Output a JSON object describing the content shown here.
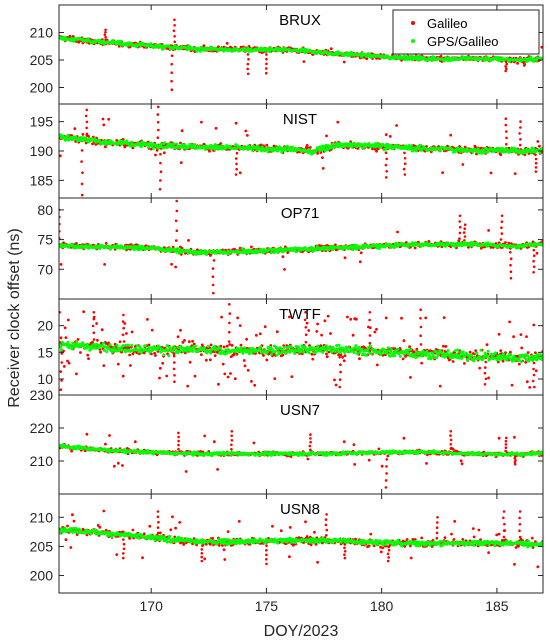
{
  "chart_data": {
    "type": "scatter",
    "xlabel": "DOY/2023",
    "ylabel": "Receiver clock offset (ns)",
    "xlim": [
      166,
      187
    ],
    "x_ticks": [
      "170",
      "175",
      "180",
      "185"
    ],
    "legend": {
      "placement": "top-right (first panel)",
      "entries": [
        {
          "name": "Galileo",
          "color": "#ff0000"
        },
        {
          "name": "GPS/Galileo",
          "color": "#00ff00"
        }
      ]
    },
    "panels": [
      {
        "title": "BRUX",
        "ylim": [
          197,
          215
        ],
        "y_ticks": [
          "200",
          "205",
          "210"
        ],
        "trend": [
          [
            166,
            209.0
          ],
          [
            168,
            208.2
          ],
          [
            170,
            207.6
          ],
          [
            172,
            207.0
          ],
          [
            174,
            206.9
          ],
          [
            176,
            206.8
          ],
          [
            178,
            206.2
          ],
          [
            180,
            205.6
          ],
          [
            182,
            205.2
          ],
          [
            184,
            205.3
          ],
          [
            186,
            205.0
          ],
          [
            187,
            205.2
          ]
        ],
        "spikes": [
          [
            170.9,
            199.6
          ],
          [
            171.0,
            212.3
          ],
          [
            174.2,
            202.5
          ],
          [
            175.0,
            202.6
          ],
          [
            185.4,
            203.0
          ],
          [
            186.2,
            204.0
          ],
          [
            168.0,
            210.5
          ]
        ]
      },
      {
        "title": "NIST",
        "ylim": [
          182,
          198
        ],
        "y_ticks": [
          "185",
          "190",
          "195"
        ],
        "trend": [
          [
            166,
            192.5
          ],
          [
            168,
            191.5
          ],
          [
            170,
            191.0
          ],
          [
            172,
            190.7
          ],
          [
            174,
            190.5
          ],
          [
            176,
            190.3
          ],
          [
            177,
            190.0
          ],
          [
            178,
            191.0
          ],
          [
            180,
            190.8
          ],
          [
            182,
            190.4
          ],
          [
            184,
            190.2
          ],
          [
            186,
            190.0
          ],
          [
            187,
            190.1
          ]
        ],
        "spikes": [
          [
            167.0,
            182.5
          ],
          [
            167.2,
            197.0
          ],
          [
            170.3,
            197.5
          ],
          [
            170.4,
            183.5
          ],
          [
            173.7,
            186.0
          ],
          [
            180.2,
            185.5
          ],
          [
            181.0,
            186.0
          ],
          [
            185.4,
            195.5
          ],
          [
            186.0,
            195.0
          ],
          [
            186.7,
            186.5
          ]
        ]
      },
      {
        "title": "OP71",
        "ylim": [
          65,
          82
        ],
        "y_ticks": [
          "70",
          "75",
          "80"
        ],
        "trend": [
          [
            166,
            74.0
          ],
          [
            168,
            73.8
          ],
          [
            170,
            73.6
          ],
          [
            172,
            72.8
          ],
          [
            174,
            73.0
          ],
          [
            176,
            73.3
          ],
          [
            178,
            73.6
          ],
          [
            180,
            74.0
          ],
          [
            182,
            74.2
          ],
          [
            184,
            74.2
          ],
          [
            186,
            73.9
          ],
          [
            187,
            74.3
          ]
        ],
        "spikes": [
          [
            166.0,
            80.0
          ],
          [
            171.1,
            81.5
          ],
          [
            172.7,
            66.0
          ],
          [
            183.4,
            79.0
          ],
          [
            183.6,
            77.5
          ],
          [
            185.2,
            79.0
          ],
          [
            185.6,
            68.5
          ],
          [
            186.6,
            69.5
          ]
        ]
      },
      {
        "title": "TWTF",
        "ylim": [
          7,
          25
        ],
        "y_ticks": [
          "10",
          "15",
          "20"
        ],
        "trend": [
          [
            166,
            16.5
          ],
          [
            168,
            16.0
          ],
          [
            170,
            15.5
          ],
          [
            172,
            15.5
          ],
          [
            174,
            15.2
          ],
          [
            176,
            15.5
          ],
          [
            178,
            15.5
          ],
          [
            180,
            15.2
          ],
          [
            182,
            14.8
          ],
          [
            184,
            14.3
          ],
          [
            186,
            14.0
          ],
          [
            187,
            14.2
          ]
        ],
        "spikes": [
          [
            166.1,
            8.0
          ],
          [
            167.5,
            22.5
          ],
          [
            168.8,
            22.0
          ],
          [
            171.0,
            9.5
          ],
          [
            173.4,
            24.0
          ],
          [
            176.7,
            22.5
          ],
          [
            178.2,
            8.5
          ],
          [
            179.5,
            22.5
          ],
          [
            181.7,
            23.0
          ],
          [
            184.5,
            9.0
          ],
          [
            186.6,
            8.5
          ]
        ]
      },
      {
        "title": "USN7",
        "ylim": [
          200,
          230
        ],
        "y_ticks": [
          "210",
          "220",
          "230"
        ],
        "trend": [
          [
            166,
            214.5
          ],
          [
            168,
            213.3
          ],
          [
            170,
            212.6
          ],
          [
            172,
            212.2
          ],
          [
            174,
            212.2
          ],
          [
            176,
            212.2
          ],
          [
            178,
            212.3
          ],
          [
            180,
            212.6
          ],
          [
            182,
            212.7
          ],
          [
            184,
            212.2
          ],
          [
            186,
            212.0
          ],
          [
            187,
            212.4
          ]
        ],
        "spikes": [
          [
            171.2,
            218.5
          ],
          [
            173.5,
            219.0
          ],
          [
            176.9,
            218.0
          ],
          [
            180.2,
            202.0
          ],
          [
            183.0,
            219.0
          ],
          [
            185.4,
            217.0
          ],
          [
            185.8,
            209.0
          ]
        ]
      },
      {
        "title": "USN8",
        "ylim": [
          197,
          214
        ],
        "y_ticks": [
          "200",
          "205",
          "210"
        ],
        "trend": [
          [
            166,
            208.0
          ],
          [
            168,
            207.3
          ],
          [
            170,
            206.5
          ],
          [
            172,
            205.8
          ],
          [
            174,
            205.8
          ],
          [
            176,
            206.0
          ],
          [
            178,
            206.0
          ],
          [
            180,
            205.6
          ],
          [
            182,
            205.5
          ],
          [
            184,
            205.6
          ],
          [
            186,
            205.5
          ],
          [
            187,
            205.3
          ]
        ],
        "spikes": [
          [
            168.8,
            203.0
          ],
          [
            170.3,
            211.0
          ],
          [
            172.2,
            202.5
          ],
          [
            175.0,
            202.0
          ],
          [
            177.6,
            210.5
          ],
          [
            178.4,
            203.0
          ],
          [
            180.3,
            202.5
          ],
          [
            182.4,
            210.0
          ],
          [
            185.3,
            211.0
          ],
          [
            186.0,
            211.0
          ]
        ]
      }
    ]
  }
}
